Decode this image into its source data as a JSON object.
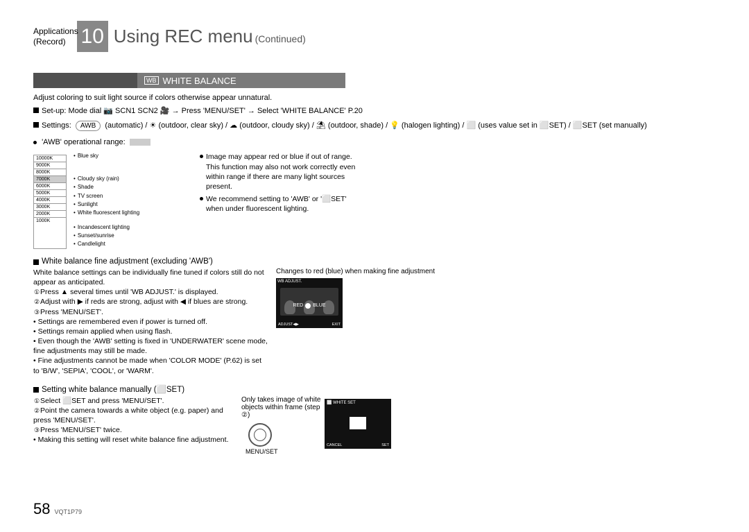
{
  "header": {
    "app_line1": "Applications",
    "app_line2": "(Record)",
    "chapter_no": "10",
    "title": "Using REC menu",
    "continued": "(Continued)"
  },
  "section": {
    "wb_badge": "WB",
    "title": "WHITE BALANCE"
  },
  "intro": "Adjust coloring to suit light source if colors otherwise appear unnatural.",
  "setup": {
    "label": "Set-up:",
    "text": "Mode dial 📷 SCN1 SCN2 🎥 → Press 'MENU/SET' → Select 'WHITE BALANCE' P.20"
  },
  "settings": {
    "label": "Settings:",
    "awb": "AWB",
    "text": "(automatic) / ☀ (outdoor, clear sky) / ☁ (outdoor, cloudy sky) / ⛱ (outdoor, shade) / 💡 (halogen lighting) / ⬜ (uses value set in ⬜SET) / ⬜SET (set manually)"
  },
  "awb_range": {
    "label": "'AWB' operational range:",
    "temps": [
      "10000K",
      "9000K",
      "8000K",
      "7000K",
      "6000K",
      "5000K",
      "4000K",
      "3000K",
      "2000K",
      "1000K"
    ],
    "highlight_idx": 3,
    "labels": {
      "blue_sky": "Blue sky",
      "cloudy": "Cloudy sky (rain)",
      "shade": "Shade",
      "tv": "TV screen",
      "sun": "Sunlight",
      "fluor": "White fluorescent lighting",
      "incand": "Incandescent lighting",
      "sunset": "Sunset/sunrise",
      "candle": "Candlelight"
    },
    "notes": [
      "Image may appear red or blue if out of range. This function may also not work correctly even within range if there are many light sources present.",
      "We recommend setting to 'AWB' or '⬜SET' when under fluorescent lighting."
    ]
  },
  "fine_adjust": {
    "heading": "White balance fine adjustment (excluding 'AWB')",
    "intro": "White balance settings can be individually fine tuned if colors still do not appear as anticipated.",
    "steps": [
      "Press ▲ several times until 'WB ADJUST.' is displayed.",
      "Adjust with ▶ if reds are strong, adjust with ◀ if blues are strong.",
      "Press 'MENU/SET'."
    ],
    "bullets": [
      "Settings are remembered even if power is turned off.",
      "Settings remain applied when using flash.",
      "Even though the 'AWB' setting is fixed in 'UNDERWATER' scene mode, fine adjustments may still be made.",
      "Fine adjustments cannot be made when 'COLOR MODE' (P.62) is set to 'B/W', 'SEPIA', 'COOL', or 'WARM'."
    ],
    "right_caption": "Changes to red (blue) when making fine adjustment",
    "screen": {
      "title": "WB ADJUST.",
      "red": "RED",
      "blue": "BLUE",
      "adjust": "ADJUST◀▶",
      "exit": "EXIT"
    }
  },
  "manual": {
    "heading": "Setting white balance manually (⬜SET)",
    "steps": [
      "Select ⬜SET and press 'MENU/SET'.",
      "Point the camera towards a white object (e.g. paper) and press 'MENU/SET'.",
      "Press 'MENU/SET' twice."
    ],
    "bullet": "Making this setting will reset white balance fine adjustment.",
    "mid_caption": "Only takes image of white objects within frame (step ②)",
    "menuset": "MENU/SET",
    "screen": {
      "title": "⬜ WHITE SET",
      "cancel": "CANCEL",
      "set": "SET"
    }
  },
  "footer": {
    "page": "58",
    "doc": "VQT1P79"
  }
}
